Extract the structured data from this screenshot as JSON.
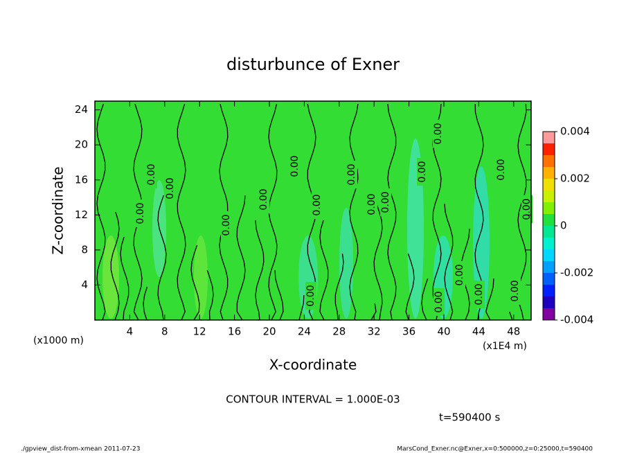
{
  "chart_data": {
    "type": "contour",
    "title": "disturbunce of Exner",
    "x_label": "X-coordinate",
    "y_label": "Z-coordinate",
    "y_unit_label": "(x1000 m)",
    "x_unit_label": "(x1E4 m)",
    "xlim": [
      0,
      50
    ],
    "xticks": [
      4,
      8,
      12,
      16,
      20,
      24,
      28,
      32,
      36,
      40,
      44,
      48
    ],
    "ylim": [
      0,
      25
    ],
    "yticks": [
      4,
      8,
      12,
      16,
      20,
      24
    ],
    "field_color": "#33dd33",
    "clim": [
      -0.004,
      0.004
    ],
    "cticks": [
      0.004,
      0.002,
      0,
      -0.002,
      -0.004
    ],
    "colorbar_colors": [
      "#8000a0",
      "#2000c0",
      "#0020ff",
      "#0060ff",
      "#00a0ff",
      "#00d8ff",
      "#00f0d0",
      "#00e890",
      "#20e040",
      "#80f000",
      "#c8f000",
      "#f0e000",
      "#ffb000",
      "#ff7000",
      "#ff2000",
      "#ff9a9a"
    ],
    "contour_labels": [
      "0.00",
      "0.00",
      "0.00",
      "0.00",
      "0.00",
      "0.00",
      "0.00",
      "0.00",
      "0.00",
      "0.00",
      "0.00",
      "0.00",
      "0.00",
      "0.00",
      "0.00",
      "0.00",
      "0.00",
      "0.00",
      "0.00"
    ],
    "contour_interval": "CONTOUR INTERVAL = 1.000E-03",
    "time_label": "t=590400 s",
    "footer_left": "./gpview_dist-from-xmean  2011-07-23",
    "footer_right": "MarsCond_Exner.nc@Exner,x=0:500000,z=0:25000,t=590400"
  }
}
